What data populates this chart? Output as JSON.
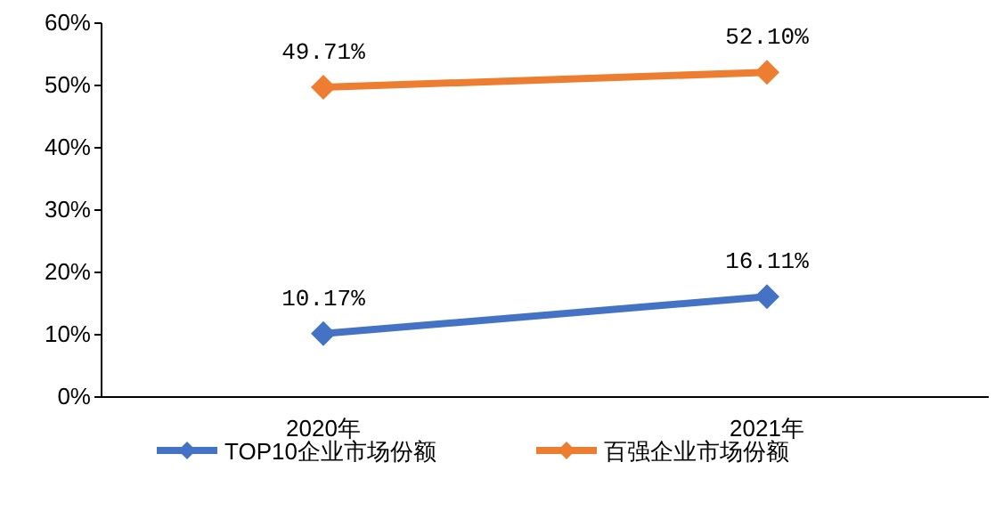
{
  "chart_data": {
    "type": "line",
    "categories": [
      "2020年",
      "2021年"
    ],
    "series": [
      {
        "name": "TOP10企业市场份额",
        "color": "#4472c4",
        "values": [
          10.17,
          16.11
        ],
        "value_labels": [
          "10.17%",
          "16.11%"
        ]
      },
      {
        "name": "百强企业市场份额",
        "color": "#ed7d31",
        "values": [
          49.71,
          52.1
        ],
        "value_labels": [
          "49.71%",
          "52.10%"
        ]
      }
    ],
    "ylim": [
      0,
      60
    ],
    "yticks": [
      {
        "value": 0,
        "label": "0%"
      },
      {
        "value": 10,
        "label": "10%"
      },
      {
        "value": 20,
        "label": "20%"
      },
      {
        "value": 30,
        "label": "30%"
      },
      {
        "value": 40,
        "label": "40%"
      },
      {
        "value": 50,
        "label": "50%"
      },
      {
        "value": 60,
        "label": "60%"
      }
    ],
    "legend": "bottom",
    "marker": "diamond",
    "grid": false
  }
}
